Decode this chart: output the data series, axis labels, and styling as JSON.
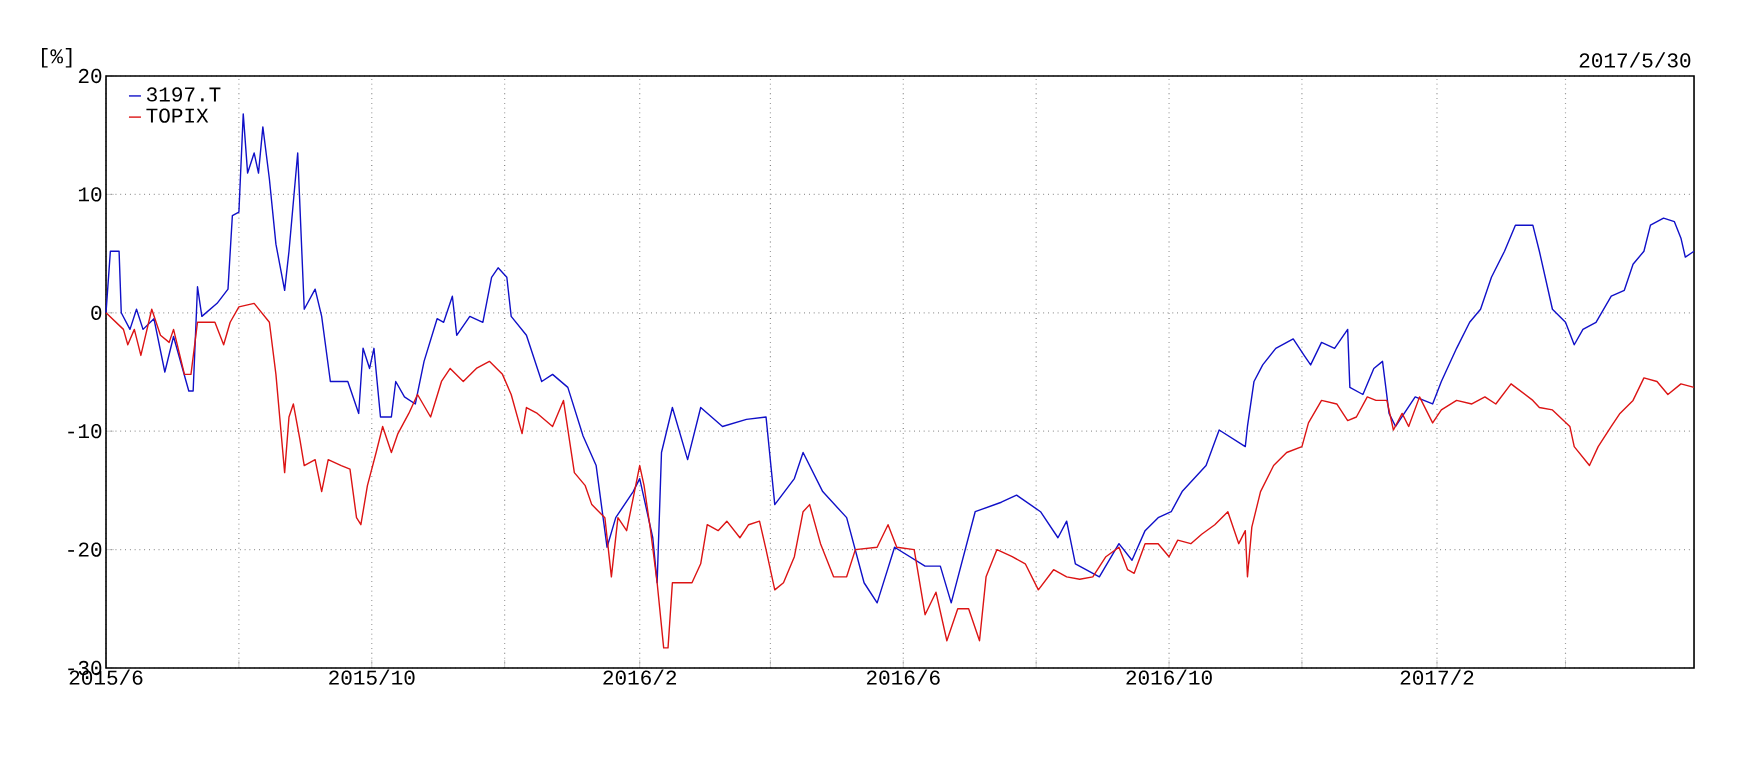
{
  "chart_data": {
    "type": "line",
    "ylabel": "[%]",
    "annotations": [
      "2017/5/30"
    ],
    "xlim": [
      "2015-06-01",
      "2017-05-30"
    ],
    "xticks": [
      {
        "value": "2015-06-01",
        "label": "2015/6"
      },
      {
        "value": "2015-08-01",
        "label": null
      },
      {
        "value": "2015-10-01",
        "label": "2015/10"
      },
      {
        "value": "2015-12-01",
        "label": null
      },
      {
        "value": "2016-02-01",
        "label": "2016/2"
      },
      {
        "value": "2016-04-01",
        "label": null
      },
      {
        "value": "2016-06-01",
        "label": "2016/6"
      },
      {
        "value": "2016-08-01",
        "label": null
      },
      {
        "value": "2016-10-01",
        "label": "2016/10"
      },
      {
        "value": "2016-12-01",
        "label": null
      },
      {
        "value": "2017-02-01",
        "label": "2017/2"
      },
      {
        "value": "2017-04-01",
        "label": null
      }
    ],
    "ylim": [
      -30,
      20
    ],
    "yticks": [
      -30,
      -20,
      -10,
      0,
      10,
      20
    ],
    "grid": true,
    "legend": "top left",
    "marker": "none",
    "line_style": "solid",
    "series": [
      {
        "name": "3197.T",
        "color": "#1010c8",
        "x": [
          "2015-06-01",
          "2015-06-03",
          "2015-06-07",
          "2015-06-08",
          "2015-06-12",
          "2015-06-15",
          "2015-06-18",
          "2015-06-23",
          "2015-06-28",
          "2015-07-02",
          "2015-07-09",
          "2015-07-11",
          "2015-07-13",
          "2015-07-15",
          "2015-07-22",
          "2015-07-27",
          "2015-07-29",
          "2015-08-01",
          "2015-08-03",
          "2015-08-05",
          "2015-08-08",
          "2015-08-10",
          "2015-08-12",
          "2015-08-15",
          "2015-08-18",
          "2015-08-22",
          "2015-08-24",
          "2015-08-28",
          "2015-08-31",
          "2015-09-05",
          "2015-09-08",
          "2015-09-12",
          "2015-09-20",
          "2015-09-25",
          "2015-09-27",
          "2015-09-30",
          "2015-10-02",
          "2015-10-05",
          "2015-10-10",
          "2015-10-12",
          "2015-10-16",
          "2015-10-21",
          "2015-10-25",
          "2015-10-31",
          "2015-11-03",
          "2015-11-07",
          "2015-11-09",
          "2015-11-15",
          "2015-11-21",
          "2015-11-25",
          "2015-11-28",
          "2015-12-02",
          "2015-12-04",
          "2015-12-11",
          "2015-12-18",
          "2015-12-23",
          "2015-12-30",
          "2016-01-06",
          "2016-01-12",
          "2016-01-17",
          "2016-01-21",
          "2016-01-29",
          "2016-02-01",
          "2016-02-07",
          "2016-02-09",
          "2016-02-11",
          "2016-02-16",
          "2016-02-23",
          "2016-02-29",
          "2016-03-10",
          "2016-03-21",
          "2016-03-30",
          "2016-04-03",
          "2016-04-12",
          "2016-04-16",
          "2016-04-25",
          "2016-05-06",
          "2016-05-14",
          "2016-05-20",
          "2016-05-28",
          "2016-06-11",
          "2016-06-18",
          "2016-06-23",
          "2016-07-04",
          "2016-07-16",
          "2016-07-23",
          "2016-08-03",
          "2016-08-11",
          "2016-08-15",
          "2016-08-19",
          "2016-08-30",
          "2016-09-08",
          "2016-09-14",
          "2016-09-20",
          "2016-09-26",
          "2016-10-02",
          "2016-10-07",
          "2016-10-18",
          "2016-10-24",
          "2016-11-05",
          "2016-11-06",
          "2016-11-09",
          "2016-11-13",
          "2016-11-19",
          "2016-11-27",
          "2016-12-02",
          "2016-12-05",
          "2016-12-10",
          "2016-12-16",
          "2016-12-22",
          "2016-12-23",
          "2016-12-29",
          "2017-01-03",
          "2017-01-07",
          "2017-01-10",
          "2017-01-13",
          "2017-01-22",
          "2017-01-30",
          "2017-02-03",
          "2017-02-10",
          "2017-02-16",
          "2017-02-21",
          "2017-02-26",
          "2017-03-04",
          "2017-03-09",
          "2017-03-17",
          "2017-03-20",
          "2017-03-26",
          "2017-04-01",
          "2017-04-05",
          "2017-04-09",
          "2017-04-15",
          "2017-04-22",
          "2017-04-28",
          "2017-05-02",
          "2017-05-07",
          "2017-05-10",
          "2017-05-16",
          "2017-05-21",
          "2017-05-24",
          "2017-05-26",
          "2017-05-30"
        ],
        "values": [
          0,
          5.2,
          5.2,
          0,
          -1.4,
          0.3,
          -1.4,
          -0.5,
          -5,
          -2,
          -6.6,
          -6.6,
          2.2,
          -0.3,
          0.8,
          2,
          8.2,
          8.5,
          16.8,
          11.8,
          13.5,
          11.8,
          15.7,
          11.3,
          5.8,
          1.9,
          5.2,
          13.5,
          0.3,
          2,
          -0.3,
          -5.8,
          -5.8,
          -8.5,
          -3,
          -4.7,
          -3,
          -8.8,
          -8.8,
          -5.8,
          -7.1,
          -7.7,
          -4.1,
          -0.5,
          -0.8,
          1.4,
          -1.9,
          -0.3,
          -0.8,
          3,
          3.8,
          3,
          -0.3,
          -1.9,
          -5.8,
          -5.2,
          -6.3,
          -10.4,
          -12.9,
          -19.8,
          -17.3,
          -15.1,
          -14,
          -19,
          -22.8,
          -11.8,
          -8,
          -12.4,
          -8,
          -9.6,
          -9,
          -8.8,
          -16.2,
          -14,
          -11.8,
          -15.1,
          -17.3,
          -22.8,
          -24.5,
          -19.8,
          -21.4,
          -21.4,
          -24.5,
          -16.8,
          -16,
          -15.4,
          -16.8,
          -19,
          -17.6,
          -21.2,
          -22.3,
          -19.5,
          -20.9,
          -18.4,
          -17.3,
          -16.8,
          -15.1,
          -12.9,
          -9.9,
          -11.3,
          -9.6,
          -5.8,
          -4.4,
          -3,
          -2.2,
          -3.6,
          -4.4,
          -2.5,
          -3,
          -1.4,
          -6.3,
          -6.9,
          -4.7,
          -4.1,
          -8.5,
          -9.6,
          -7.1,
          -7.7,
          -5.8,
          -3,
          -0.8,
          0.3,
          3,
          5.2,
          7.4,
          7.4,
          5.2,
          0.3,
          -0.8,
          -2.7,
          -1.4,
          -0.8,
          1.4,
          1.9,
          4.1,
          5.2,
          7.4,
          8,
          7.7,
          6.3,
          4.7,
          5.2
        ]
      },
      {
        "name": "TOPIX",
        "color": "#dc1414",
        "x": [
          "2015-06-01",
          "2015-06-09",
          "2015-06-11",
          "2015-06-14",
          "2015-06-17",
          "2015-06-22",
          "2015-06-26",
          "2015-06-30",
          "2015-07-02",
          "2015-07-07",
          "2015-07-10",
          "2015-07-13",
          "2015-07-21",
          "2015-07-25",
          "2015-07-28",
          "2015-08-01",
          "2015-08-08",
          "2015-08-15",
          "2015-08-18",
          "2015-08-22",
          "2015-08-24",
          "2015-08-26",
          "2015-08-29",
          "2015-08-31",
          "2015-09-05",
          "2015-09-08",
          "2015-09-11",
          "2015-09-17",
          "2015-09-21",
          "2015-09-24",
          "2015-09-26",
          "2015-09-29",
          "2015-10-03",
          "2015-10-06",
          "2015-10-10",
          "2015-10-13",
          "2015-10-18",
          "2015-10-22",
          "2015-10-28",
          "2015-11-02",
          "2015-11-06",
          "2015-11-12",
          "2015-11-18",
          "2015-11-24",
          "2015-11-30",
          "2015-12-04",
          "2015-12-09",
          "2015-12-11",
          "2015-12-16",
          "2015-12-23",
          "2015-12-28",
          "2016-01-02",
          "2016-01-07",
          "2016-01-10",
          "2016-01-16",
          "2016-01-19",
          "2016-01-22",
          "2016-01-26",
          "2016-02-01",
          "2016-02-03",
          "2016-02-06",
          "2016-02-09",
          "2016-02-12",
          "2016-02-14",
          "2016-02-16",
          "2016-02-25",
          "2016-02-29",
          "2016-03-03",
          "2016-03-08",
          "2016-03-12",
          "2016-03-18",
          "2016-03-22",
          "2016-03-27",
          "2016-03-30",
          "2016-04-03",
          "2016-04-07",
          "2016-04-12",
          "2016-04-16",
          "2016-04-19",
          "2016-04-24",
          "2016-04-30",
          "2016-05-06",
          "2016-05-10",
          "2016-05-20",
          "2016-05-25",
          "2016-05-29",
          "2016-06-06",
          "2016-06-11",
          "2016-06-16",
          "2016-06-21",
          "2016-06-26",
          "2016-07-01",
          "2016-07-06",
          "2016-07-09",
          "2016-07-14",
          "2016-07-21",
          "2016-07-27",
          "2016-08-02",
          "2016-08-09",
          "2016-08-15",
          "2016-08-21",
          "2016-08-27",
          "2016-09-02",
          "2016-09-08",
          "2016-09-12",
          "2016-09-15",
          "2016-09-20",
          "2016-09-26",
          "2016-10-01",
          "2016-10-05",
          "2016-10-11",
          "2016-10-16",
          "2016-10-22",
          "2016-10-28",
          "2016-11-02",
          "2016-11-05",
          "2016-11-06",
          "2016-11-08",
          "2016-11-12",
          "2016-11-18",
          "2016-11-24",
          "2016-12-01",
          "2016-12-04",
          "2016-12-10",
          "2016-12-17",
          "2016-12-22",
          "2016-12-26",
          "2016-12-31",
          "2017-01-04",
          "2017-01-09",
          "2017-01-12",
          "2017-01-16",
          "2017-01-19",
          "2017-01-24",
          "2017-01-30",
          "2017-02-03",
          "2017-02-10",
          "2017-02-17",
          "2017-02-23",
          "2017-02-28",
          "2017-03-07",
          "2017-03-17",
          "2017-03-20",
          "2017-03-26",
          "2017-04-03",
          "2017-04-05",
          "2017-04-12",
          "2017-04-16",
          "2017-04-22",
          "2017-04-26",
          "2017-05-02",
          "2017-05-07",
          "2017-05-13",
          "2017-05-18",
          "2017-05-24",
          "2017-05-30"
        ],
        "values": [
          0,
          -1.4,
          -2.7,
          -1.4,
          -3.6,
          0.3,
          -1.9,
          -2.5,
          -1.4,
          -5.2,
          -5.2,
          -0.8,
          -0.8,
          -2.7,
          -0.8,
          0.5,
          0.8,
          -0.8,
          -5.2,
          -13.5,
          -8.8,
          -7.7,
          -10.7,
          -12.9,
          -12.4,
          -15.1,
          -12.4,
          -12.9,
          -13.2,
          -17.3,
          -17.9,
          -14.6,
          -11.8,
          -9.6,
          -11.8,
          -10.2,
          -8.5,
          -6.9,
          -8.8,
          -5.8,
          -4.7,
          -5.8,
          -4.7,
          -4.1,
          -5.2,
          -6.9,
          -10.2,
          -8,
          -8.5,
          -9.6,
          -7.4,
          -13.5,
          -14.6,
          -16.2,
          -17.3,
          -22.3,
          -17.3,
          -18.4,
          -12.9,
          -14.6,
          -18.4,
          -22.8,
          -28.3,
          -28.3,
          -22.8,
          -22.8,
          -21.2,
          -17.9,
          -18.4,
          -17.6,
          -19,
          -17.9,
          -17.6,
          -20,
          -23.4,
          -22.8,
          -20.6,
          -16.8,
          -16.2,
          -19.5,
          -22.3,
          -22.3,
          -20,
          -19.8,
          -17.9,
          -19.8,
          -20,
          -25.5,
          -23.6,
          -27.7,
          -25,
          -25,
          -27.7,
          -22.3,
          -20,
          -20.6,
          -21.2,
          -23.4,
          -21.7,
          -22.3,
          -22.5,
          -22.3,
          -20.6,
          -19.8,
          -21.7,
          -22,
          -19.5,
          -19.5,
          -20.6,
          -19.2,
          -19.5,
          -18.7,
          -17.9,
          -16.8,
          -19.5,
          -18.4,
          -22.3,
          -18.1,
          -15.1,
          -12.9,
          -11.8,
          -11.3,
          -9.3,
          -7.4,
          -7.7,
          -9.1,
          -8.8,
          -7.1,
          -7.4,
          -7.4,
          -9.9,
          -8.5,
          -9.6,
          -7.1,
          -9.3,
          -8.2,
          -7.4,
          -7.7,
          -7.1,
          -7.7,
          -6,
          -7.4,
          -8,
          -8.2,
          -9.6,
          -11.3,
          -12.9,
          -11.3,
          -9.6,
          -8.5,
          -7.4,
          -5.5,
          -5.8,
          -6.9,
          -6,
          -6.3
        ]
      }
    ]
  }
}
